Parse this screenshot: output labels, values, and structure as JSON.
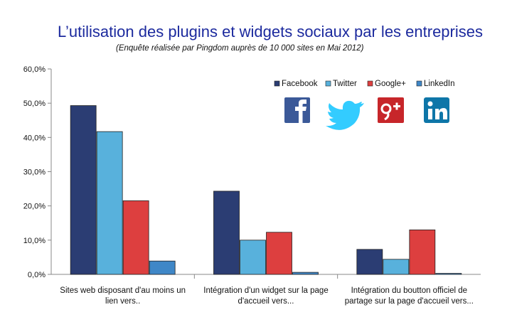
{
  "chart_data": {
    "type": "bar",
    "title": "L’utilisation des plugins et widgets sociaux par les entreprises",
    "subtitle": "(Enquête réalisée par Pingdom auprès de 10 000 sites en Mai 2012)",
    "categories": [
      [
        "Sites web disposant d'au moins un",
        "lien vers.."
      ],
      [
        "Intégration d'un widget sur la page",
        "d'accueil vers..."
      ],
      [
        "Intégration du boutton officiel de",
        "partage sur la page d'accueil vers..."
      ]
    ],
    "series": [
      {
        "name": "Facebook",
        "color": "#2b3d73",
        "icon": "facebook-icon",
        "values": [
          49.3,
          24.3,
          7.3
        ]
      },
      {
        "name": "Twitter",
        "color": "#58b1dc",
        "icon": "twitter-icon",
        "values": [
          41.7,
          10.0,
          4.4
        ]
      },
      {
        "name": "Google+",
        "color": "#dd3f3f",
        "icon": "google-plus-icon",
        "values": [
          21.5,
          12.3,
          13.0
        ]
      },
      {
        "name": "LinkedIn",
        "color": "#3f87c7",
        "icon": "linkedin-icon",
        "values": [
          3.9,
          0.6,
          0.3
        ]
      }
    ],
    "ylim": [
      0,
      60
    ],
    "yticks": [
      "0,0%",
      "10,0%",
      "20,0%",
      "30,0%",
      "40,0%",
      "50,0%",
      "60,0%"
    ],
    "legend_position": "top-right",
    "grid": false
  }
}
